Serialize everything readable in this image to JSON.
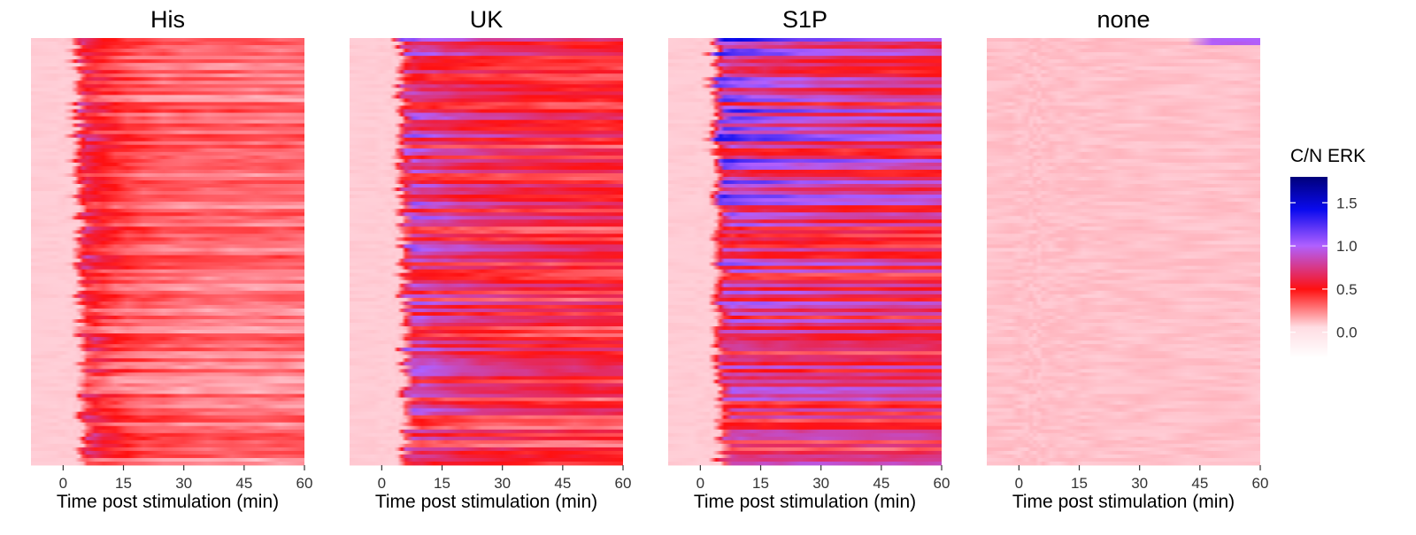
{
  "chart_data": {
    "type": "heatmap",
    "facets": [
      "His",
      "UK",
      "S1P",
      "none"
    ],
    "xlabel": "Time post stimulation (min)",
    "x_range": [
      -8,
      60
    ],
    "x_ticks": [
      "0",
      "15",
      "30",
      "45",
      "60"
    ],
    "legend": {
      "title": "C/N ERK",
      "position": "right",
      "ticks": [
        "0.0",
        "0.5",
        "1.0",
        "1.5"
      ],
      "value_range": [
        -0.3,
        1.8
      ]
    },
    "colors": {
      "low": "#ffffff",
      "baseline": "#ffc8d2",
      "mid": "#ff1010",
      "high": "#b060ff",
      "max": "#00007a"
    },
    "profiles": [
      {
        "facet": "His",
        "baseline": 0.05,
        "peak": 0.75,
        "onset_min": 1,
        "decay_tau_min": 8,
        "sustained": 0.28
      },
      {
        "facet": "UK",
        "baseline": 0.05,
        "peak": 0.85,
        "onset_min": 2,
        "decay_tau_min": 20,
        "sustained": 0.5
      },
      {
        "facet": "S1P",
        "baseline": 0.05,
        "peak": 1.05,
        "onset_min": 1,
        "decay_tau_min": 25,
        "sustained": 0.68
      },
      {
        "facet": "none",
        "baseline": 0.08,
        "peak": 0.1,
        "onset_min": 60,
        "decay_tau_min": 1,
        "sustained": 0.08
      }
    ]
  }
}
